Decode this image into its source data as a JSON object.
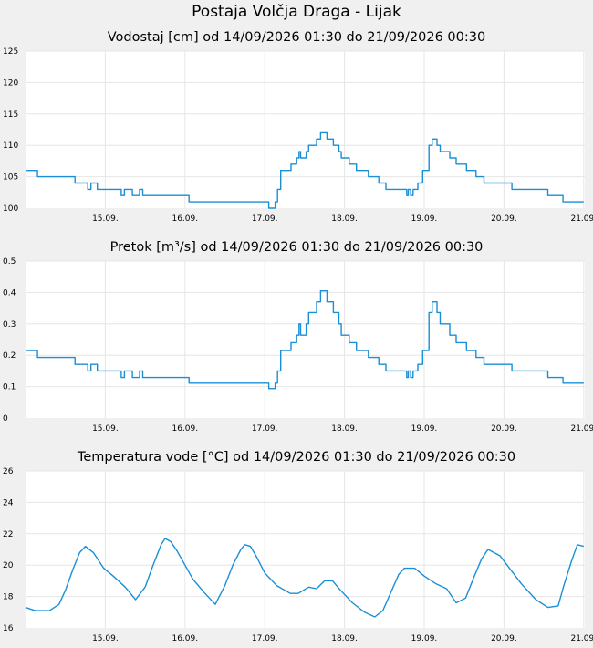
{
  "page_title": "Postaja Volčja Draga - Lijak",
  "colors": {
    "line": "#1a8fd6",
    "grid": "#e6e6e6",
    "plot_bg": "#ffffff",
    "page_bg": "#f0f0f0"
  },
  "chart_data": [
    {
      "type": "line",
      "title": "Vodostaj [cm] od 14/09/2026 01:30 do 21/09/2026 00:30",
      "xlabel": "",
      "ylabel": "",
      "ylim": [
        100,
        125
      ],
      "yticks": [
        "100",
        "105",
        "110",
        "115",
        "120",
        "125"
      ],
      "xticks": [
        "15.09.",
        "16.09.",
        "17.09.",
        "18.09.",
        "19.09.",
        "20.09.",
        "21.09."
      ],
      "xlim_days": [
        0,
        7
      ],
      "grid": true,
      "series": [
        {
          "step": true,
          "x_days": [
            0,
            0.15,
            0.62,
            0.78,
            0.82,
            0.86,
            0.9,
            1.2,
            1.24,
            1.3,
            1.34,
            1.38,
            1.43,
            1.47,
            1.52,
            1.56,
            1.6,
            2.05,
            2.8,
            3.05,
            3.1,
            3.13,
            3.16,
            3.2,
            3.3,
            3.33,
            3.4,
            3.43,
            3.45,
            3.52,
            3.55,
            3.6,
            3.65,
            3.7,
            3.75,
            3.78,
            3.86,
            3.93,
            3.96,
            4.02,
            4.06,
            4.12,
            4.15,
            4.25,
            4.3,
            4.43,
            4.52,
            4.72,
            4.78,
            4.8,
            4.83,
            4.86,
            4.88,
            4.92,
            4.98,
            5.06,
            5.1,
            5.16,
            5.2,
            5.27,
            5.32,
            5.4,
            5.45,
            5.53,
            5.65,
            5.75,
            6.1,
            6.2,
            6.55,
            6.74,
            7
          ],
          "y": [
            106,
            105,
            104,
            103,
            104,
            104,
            103,
            102,
            103,
            103,
            102,
            102,
            103,
            102,
            102,
            102,
            102,
            101,
            101,
            100,
            100,
            101,
            103,
            106,
            106,
            107,
            108,
            109,
            108,
            109,
            110,
            110,
            111,
            112,
            112,
            111,
            110,
            109,
            108,
            108,
            107,
            107,
            106,
            106,
            105,
            104,
            103,
            103,
            102,
            103,
            102,
            103,
            103,
            104,
            106,
            110,
            111,
            110,
            109,
            109,
            108,
            107,
            107,
            106,
            105,
            104,
            103,
            103,
            102,
            101,
            101
          ]
        }
      ]
    },
    {
      "type": "line",
      "title": "Pretok [m³/s] od 14/09/2026 01:30 do 21/09/2026 00:30",
      "xlabel": "",
      "ylabel": "",
      "ylim": [
        0,
        0.5
      ],
      "yticks": [
        "0",
        "0.1",
        "0.2",
        "0.3",
        "0.4",
        "0.5"
      ],
      "xticks": [
        "15.09.",
        "16.09.",
        "17.09.",
        "18.09.",
        "19.09.",
        "20.09.",
        "21.09."
      ],
      "xlim_days": [
        0,
        7
      ],
      "grid": true,
      "series": [
        {
          "step": true,
          "x_days": [
            0,
            0.15,
            0.62,
            0.78,
            0.82,
            0.86,
            0.9,
            1.2,
            1.24,
            1.3,
            1.34,
            1.38,
            1.43,
            1.47,
            1.52,
            1.56,
            1.6,
            2.05,
            2.8,
            3.05,
            3.1,
            3.13,
            3.16,
            3.2,
            3.3,
            3.33,
            3.4,
            3.43,
            3.45,
            3.52,
            3.55,
            3.6,
            3.65,
            3.7,
            3.75,
            3.78,
            3.86,
            3.93,
            3.96,
            4.02,
            4.06,
            4.12,
            4.15,
            4.25,
            4.3,
            4.43,
            4.52,
            4.72,
            4.78,
            4.8,
            4.83,
            4.86,
            4.88,
            4.92,
            4.98,
            5.06,
            5.1,
            5.16,
            5.2,
            5.27,
            5.32,
            5.4,
            5.45,
            5.53,
            5.65,
            5.75,
            6.1,
            6.2,
            6.55,
            6.74,
            7
          ],
          "y": [
            0.215,
            0.193,
            0.171,
            0.15,
            0.171,
            0.171,
            0.15,
            0.129,
            0.15,
            0.15,
            0.129,
            0.129,
            0.15,
            0.129,
            0.129,
            0.129,
            0.129,
            0.111,
            0.111,
            0.094,
            0.094,
            0.111,
            0.15,
            0.215,
            0.215,
            0.24,
            0.264,
            0.3,
            0.264,
            0.3,
            0.336,
            0.336,
            0.37,
            0.405,
            0.405,
            0.37,
            0.336,
            0.3,
            0.264,
            0.264,
            0.24,
            0.24,
            0.215,
            0.215,
            0.193,
            0.171,
            0.15,
            0.15,
            0.129,
            0.15,
            0.129,
            0.15,
            0.15,
            0.171,
            0.215,
            0.336,
            0.37,
            0.336,
            0.3,
            0.3,
            0.264,
            0.24,
            0.24,
            0.215,
            0.193,
            0.171,
            0.15,
            0.15,
            0.129,
            0.111,
            0.111
          ]
        }
      ]
    },
    {
      "type": "line",
      "title": "Temperatura vode [°C] od 14/09/2026 01:30 do 21/09/2026 00:30",
      "xlabel": "",
      "ylabel": "",
      "ylim": [
        16,
        26
      ],
      "yticks": [
        "16",
        "18",
        "20",
        "22",
        "24",
        "26"
      ],
      "xticks": [
        "15.09.",
        "16.09.",
        "17.09.",
        "18.09.",
        "19.09.",
        "20.09.",
        "21.09."
      ],
      "xlim_days": [
        0,
        7
      ],
      "grid": true,
      "series": [
        {
          "step": false,
          "x_days": [
            0,
            0.12,
            0.3,
            0.42,
            0.5,
            0.6,
            0.68,
            0.75,
            0.85,
            0.98,
            1.1,
            1.25,
            1.38,
            1.5,
            1.6,
            1.7,
            1.75,
            1.82,
            1.9,
            2.0,
            2.1,
            2.25,
            2.38,
            2.5,
            2.6,
            2.7,
            2.75,
            2.82,
            2.9,
            3.0,
            3.15,
            3.32,
            3.42,
            3.55,
            3.65,
            3.75,
            3.85,
            3.95,
            4.1,
            4.25,
            4.38,
            4.48,
            4.55,
            4.68,
            4.75,
            4.88,
            5.0,
            5.15,
            5.28,
            5.4,
            5.52,
            5.62,
            5.72,
            5.8,
            5.95,
            6.1,
            6.22,
            6.4,
            6.55,
            6.68,
            6.75,
            6.85,
            6.92,
            7.0
          ],
          "y": [
            17.3,
            17.1,
            17.1,
            17.5,
            18.4,
            19.8,
            20.8,
            21.2,
            20.8,
            19.8,
            19.3,
            18.6,
            17.8,
            18.6,
            20.0,
            21.3,
            21.7,
            21.5,
            20.9,
            20.0,
            19.1,
            18.2,
            17.5,
            18.7,
            20.0,
            21.0,
            21.3,
            21.2,
            20.5,
            19.5,
            18.7,
            18.2,
            18.2,
            18.6,
            18.5,
            19.0,
            19.0,
            18.4,
            17.6,
            17.0,
            16.7,
            17.1,
            17.9,
            19.4,
            19.8,
            19.8,
            19.3,
            18.8,
            18.5,
            17.6,
            17.9,
            19.2,
            20.4,
            21.0,
            20.6,
            19.6,
            18.8,
            17.8,
            17.3,
            17.4,
            18.7,
            20.3,
            21.3,
            21.2
          ]
        }
      ]
    }
  ]
}
